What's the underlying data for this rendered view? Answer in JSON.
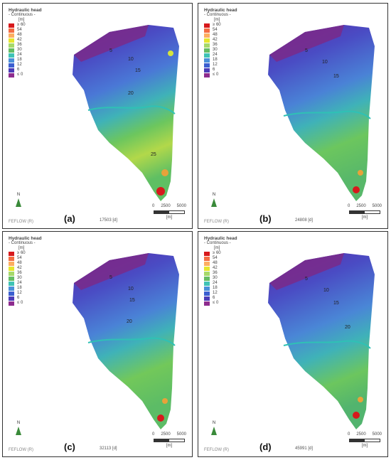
{
  "legend": {
    "title": "Hydraulic head",
    "subtitle": "- Continuous -",
    "unit": "[m]",
    "entries": [
      {
        "label": "≥ 60",
        "color": "#d7191c"
      },
      {
        "label": "54",
        "color": "#f46d43"
      },
      {
        "label": "48",
        "color": "#fdae61"
      },
      {
        "label": "42",
        "color": "#e6e62e"
      },
      {
        "label": "36",
        "color": "#a6d96a"
      },
      {
        "label": "30",
        "color": "#66bd63"
      },
      {
        "label": "24",
        "color": "#3fc3b5"
      },
      {
        "label": "18",
        "color": "#4a90d9"
      },
      {
        "label": "12",
        "color": "#3b5fd0"
      },
      {
        "label": "6",
        "color": "#4b3cb8"
      },
      {
        "label": "≤ 0",
        "color": "#8e2c8e"
      }
    ]
  },
  "common": {
    "north": "N",
    "feflow": "FEFLOW (R)",
    "scale_start": "0",
    "scale_mid": "2500",
    "scale_end": "5000",
    "scale_unit": "[m]"
  },
  "contour_labels": [
    "5",
    "10",
    "15",
    "20",
    "25"
  ],
  "panels": [
    {
      "id": "a",
      "label": "(a)",
      "time": "17503 [d]"
    },
    {
      "id": "b",
      "label": "(b)",
      "time": "24808 [d]"
    },
    {
      "id": "c",
      "label": "(c)",
      "time": "32113 [d]"
    },
    {
      "id": "d",
      "label": "(d)",
      "time": "45991 [d]"
    }
  ]
}
